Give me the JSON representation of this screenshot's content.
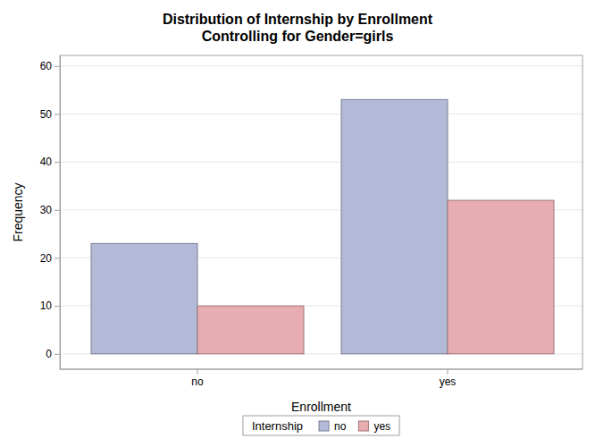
{
  "chart_data": {
    "type": "bar",
    "title": "Distribution of Internship by Enrollment",
    "subtitle": "Controlling for Gender=girls",
    "x_label": "Enrollment",
    "y_label": "Frequency",
    "legend_title": "Internship",
    "categories": [
      "no",
      "yes"
    ],
    "series": [
      {
        "name": "no",
        "color": "#b3bad8",
        "values": [
          23,
          53
        ]
      },
      {
        "name": "yes",
        "color": "#e8adb0",
        "values": [
          10,
          32
        ]
      }
    ],
    "ylim": [
      -3.2,
      62.2
    ],
    "yticks": [
      0,
      10,
      20,
      30,
      40,
      50,
      60
    ],
    "grid": true,
    "legend": "bottom"
  }
}
